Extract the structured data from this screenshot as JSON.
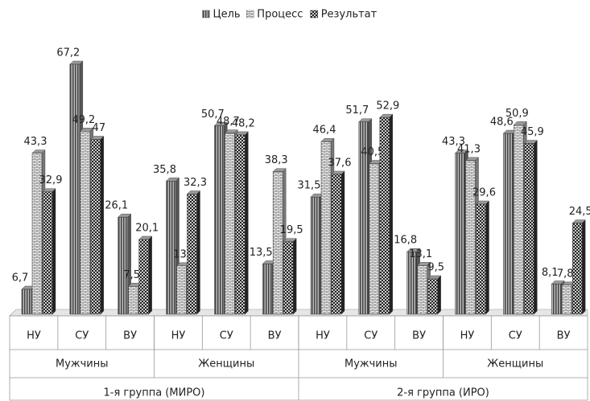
{
  "chart_data": {
    "type": "bar3d",
    "groups": [
      {
        "name": "1-я группа (МИРО)",
        "subgroups": [
          {
            "name": "Мужчины",
            "categories": [
              "НУ",
              "СУ",
              "ВУ"
            ]
          },
          {
            "name": "Женщины",
            "categories": [
              "НУ",
              "СУ",
              "ВУ"
            ]
          }
        ]
      },
      {
        "name": "2-я группа (ИРО)",
        "subgroups": [
          {
            "name": "Мужчины",
            "categories": [
              "НУ",
              "СУ",
              "ВУ"
            ]
          },
          {
            "name": "Женщины",
            "categories": [
              "НУ",
              "СУ",
              "ВУ"
            ]
          }
        ]
      }
    ],
    "ylim": [
      0,
      70
    ],
    "legend": "top",
    "series": [
      {
        "name": "Цель",
        "color": "#555555",
        "pattern": "vertical-stripes",
        "values": [
          6.7,
          67.2,
          26.1,
          35.8,
          50.7,
          13.5,
          31.5,
          51.7,
          16.8,
          43.3,
          48.6,
          8.1
        ],
        "value_labels": [
          "6,7",
          "67,2",
          "26,1",
          "35,8",
          "50,7",
          "13,5",
          "31,5",
          "51,7",
          "16,8",
          "43,3",
          "48,6",
          "8,1"
        ]
      },
      {
        "name": "Процесс",
        "color": "#777777",
        "pattern": "bricks",
        "values": [
          43.3,
          49.2,
          7.5,
          13,
          48.7,
          38.3,
          46.4,
          40.5,
          13.1,
          41.3,
          50.9,
          7.8
        ],
        "value_labels": [
          "43,3",
          "49,2",
          "7,5",
          "13",
          "48,7",
          "38,3",
          "46,4",
          "40,5",
          "13,1",
          "41,3",
          "50,9",
          "7,8"
        ]
      },
      {
        "name": "Результат",
        "color": "#222222",
        "pattern": "checker",
        "values": [
          32.9,
          47,
          20.1,
          32.3,
          48.2,
          19.5,
          37.6,
          52.9,
          9.5,
          29.6,
          45.9,
          24.5
        ],
        "value_labels": [
          "32,9",
          "47",
          "20,1",
          "32,3",
          "48,2",
          "19,5",
          "37,6",
          "52,9",
          "9,5",
          "29,6",
          "45,9",
          "24,5"
        ]
      }
    ]
  }
}
